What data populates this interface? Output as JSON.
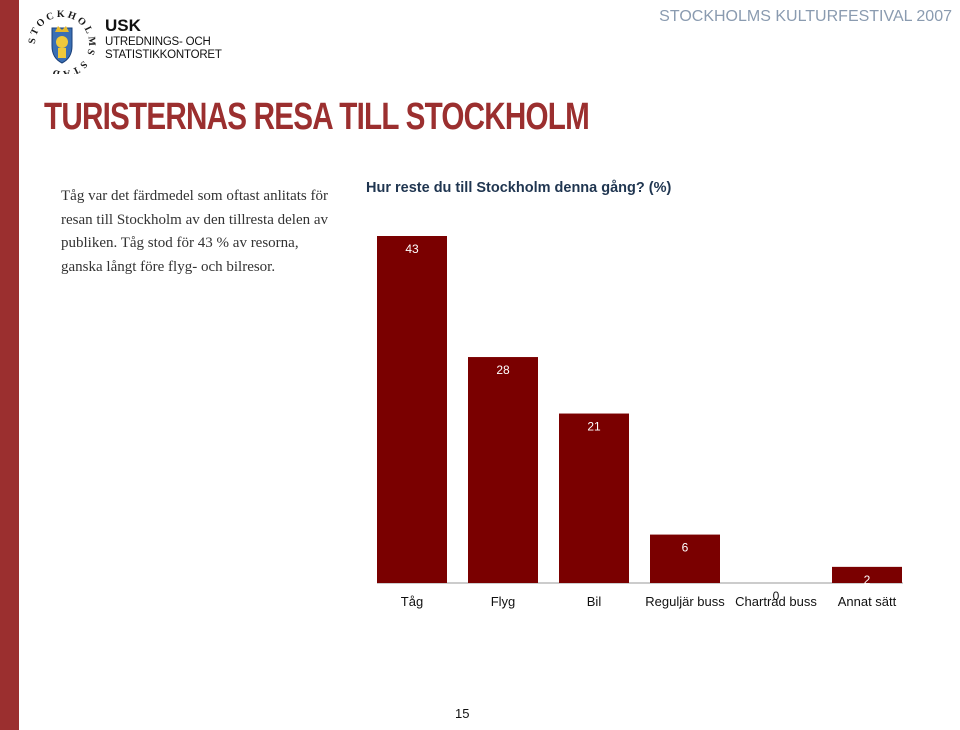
{
  "header": {
    "org_abbr": "USK",
    "org_line1": "UTREDNINGS- OCH",
    "org_line2": "STATISTIKKONTORET",
    "event": "STOCKHOLMS KULTURFESTIVAL 2007",
    "logo_text": "STOCKHOLMS STAD"
  },
  "slide": {
    "title": "TURISTERNAS RESA TILL STOCKHOLM",
    "intro": "Tåg var det färdmedel som oftast anlitats för resan till Stockholm av den tillresta delen av publiken. Tåg stod för 43 % av resorna, ganska långt före flyg- och bilresor.",
    "page_number": "15"
  },
  "colors": {
    "accent": "#9b2f2f",
    "bar": "#7a0000",
    "header_grey": "#8a9bb0"
  },
  "chart_data": {
    "type": "bar",
    "title": "Hur reste du till Stockholm denna gång? (%)",
    "categories": [
      "Tåg",
      "Flyg",
      "Bil",
      "Reguljär buss",
      "Chartrad buss",
      "Annat sätt"
    ],
    "values": [
      43,
      28,
      21,
      6,
      0,
      2
    ],
    "xlabel": "",
    "ylabel": "",
    "ylim": [
      0,
      50
    ],
    "grid": false,
    "legend": "none"
  }
}
